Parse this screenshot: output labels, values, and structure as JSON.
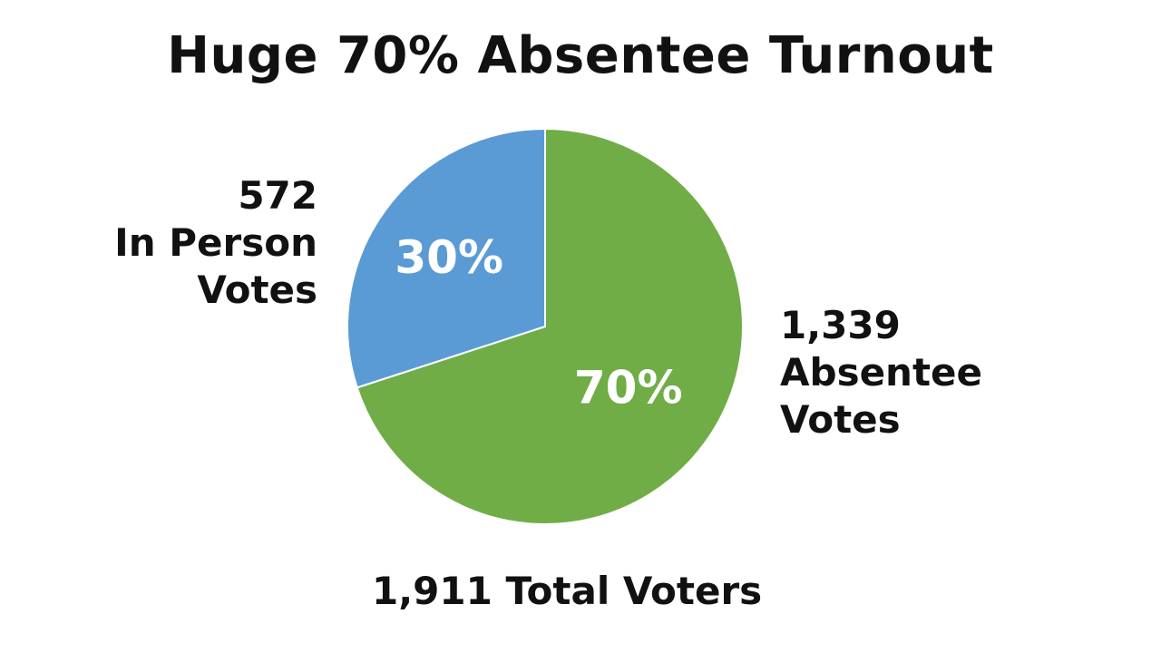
{
  "chart_data": {
    "type": "pie",
    "title": "Huge 70% Absentee Turnout",
    "slices": [
      {
        "name": "In Person Votes",
        "count": 572,
        "count_label": "572",
        "caption_line1": "In Person",
        "caption_line2": "Votes",
        "percent": 30,
        "percent_label": "30%",
        "color": "#5b9bd5"
      },
      {
        "name": "Absentee Votes",
        "count": 1339,
        "count_label": "1,339",
        "caption_line1": "Absentee",
        "caption_line2": "Votes",
        "percent": 70,
        "percent_label": "70%",
        "color": "#70ad47"
      }
    ],
    "total": 1911,
    "total_label": "1,911 Total Voters"
  }
}
